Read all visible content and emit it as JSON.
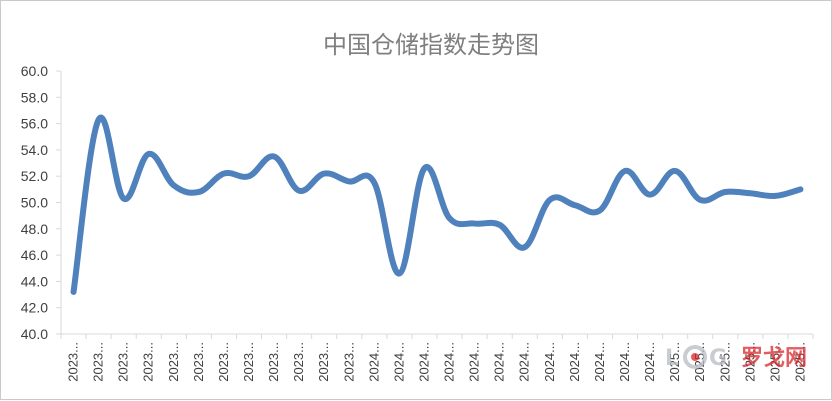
{
  "chart_data": {
    "type": "line",
    "title": "中国仓储指数走势图",
    "xlabel": "",
    "ylabel": "",
    "ylim": [
      40.0,
      60.0
    ],
    "ytick_step": 2.0,
    "yticks": [
      "40.0",
      "42.0",
      "44.0",
      "46.0",
      "48.0",
      "50.0",
      "52.0",
      "54.0",
      "56.0",
      "58.0",
      "60.0"
    ],
    "categories": [
      "2023...",
      "2023...",
      "2023...",
      "2023...",
      "2023...",
      "2023...",
      "2023...",
      "2023...",
      "2023...",
      "2023...",
      "2023...",
      "2023...",
      "2024...",
      "2024...",
      "2024...",
      "2024...",
      "2024...",
      "2024...",
      "2024...",
      "2024...",
      "2024...",
      "2024...",
      "2024...",
      "2024...",
      "2025...",
      "2025...",
      "2025...",
      "2025...",
      "2025...",
      "2025..."
    ],
    "series": [
      {
        "values": [
          43.2,
          56.3,
          50.3,
          53.7,
          51.3,
          50.8,
          52.2,
          52.0,
          53.5,
          50.9,
          52.2,
          51.6,
          51.5,
          44.6,
          52.6,
          48.8,
          48.4,
          48.3,
          46.6,
          50.2,
          49.8,
          49.4,
          52.4,
          50.6,
          52.4,
          50.2,
          50.8,
          50.7,
          50.5,
          51.0
        ],
        "color": "#4f81bd"
      }
    ],
    "grid": false,
    "legend": "none"
  },
  "watermark": {
    "text": "LOG罗戈网",
    "letters": [
      "L",
      "O",
      "G"
    ],
    "cn_text": "罗戈网",
    "colors": {
      "letters": "#b8bcc2",
      "accent": "#d9262c"
    }
  }
}
